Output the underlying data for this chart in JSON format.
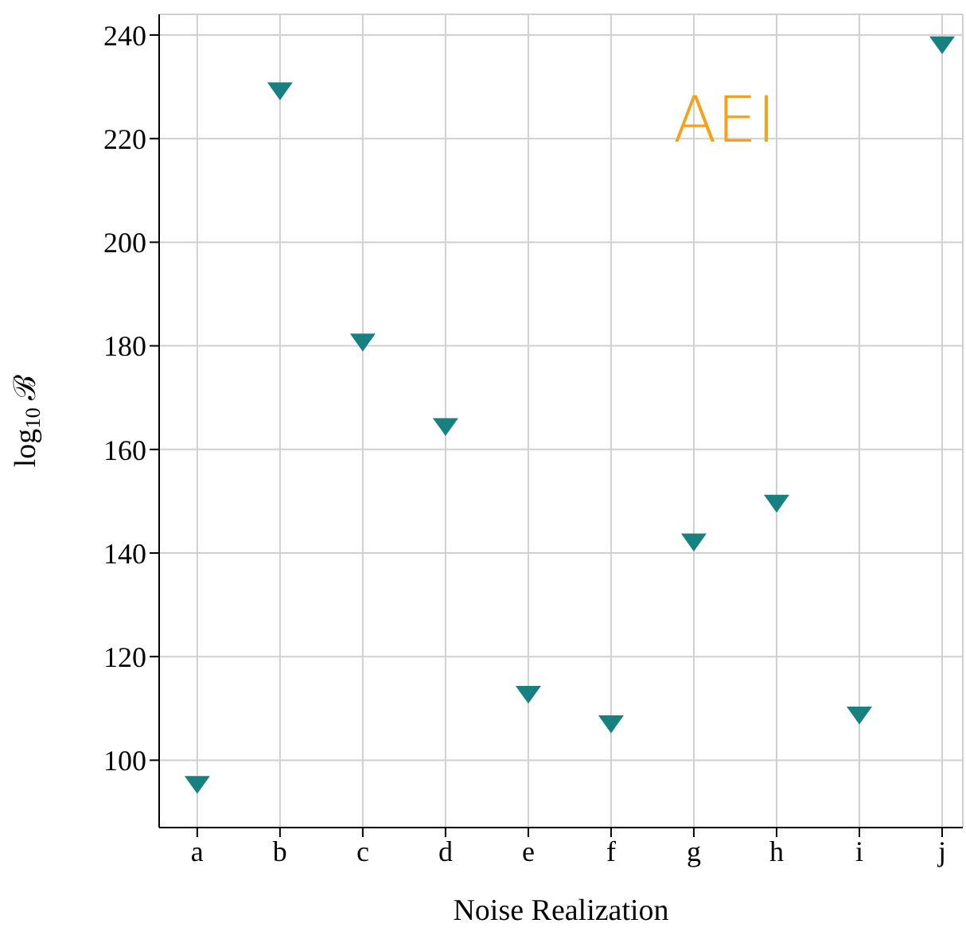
{
  "chart_data": {
    "type": "scatter",
    "xlabel": "Noise Realization",
    "ylabel": "log$_{10}$ ℬ",
    "annotations": [
      "AEI"
    ],
    "categories": [
      "a",
      "b",
      "c",
      "d",
      "e",
      "f",
      "g",
      "h",
      "i",
      "j"
    ],
    "series": [
      {
        "color": "#178080",
        "values": [
          95.6,
          229.5,
          181,
          164.7,
          113,
          107.3,
          142.4,
          149.9,
          109,
          238.4
        ]
      }
    ],
    "ylim": [
      87,
      244
    ],
    "yticks": [
      100,
      120,
      140,
      160,
      180,
      200,
      220,
      240
    ],
    "grid": true,
    "marker": "triangle",
    "legend": false
  }
}
